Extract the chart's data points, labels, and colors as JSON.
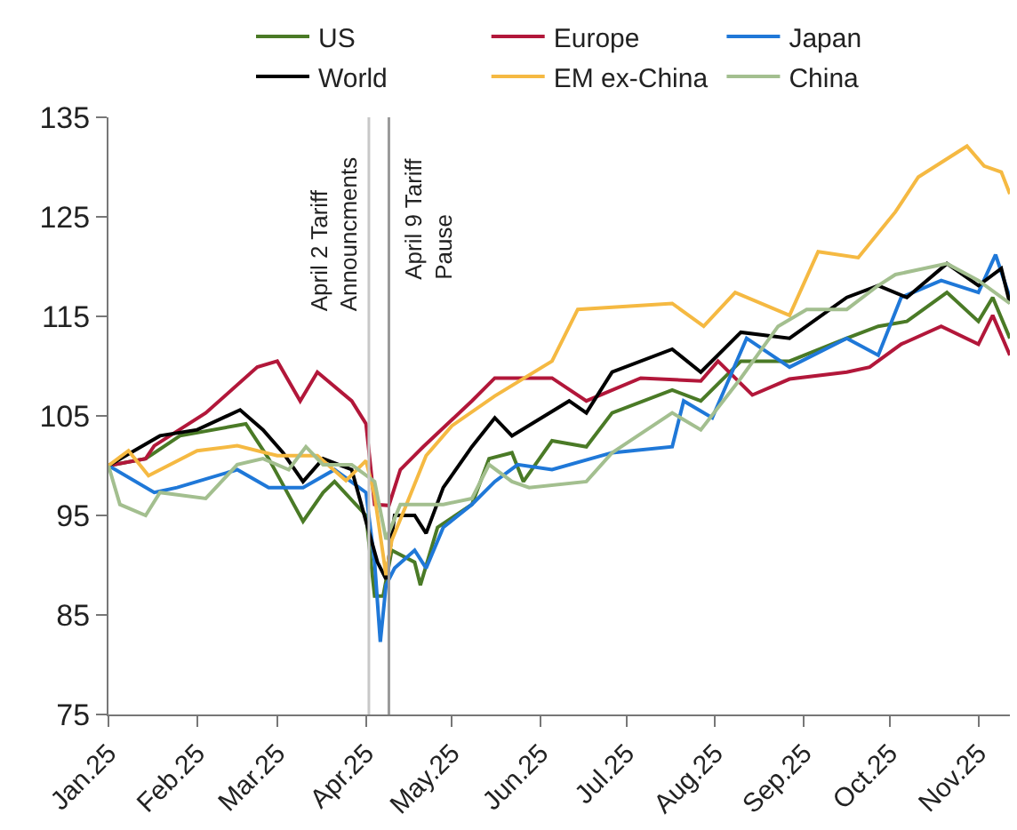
{
  "chart_data": {
    "type": "line",
    "legend": "top",
    "grid": false,
    "line_style": "solid",
    "marker": "none",
    "xlim": [
      "2025-01-01",
      "2025-11-12"
    ],
    "xticks": [
      {
        "value": "2025-01-01",
        "label": "Jan.25"
      },
      {
        "value": "2025-02-01",
        "label": "Feb.25"
      },
      {
        "value": "2025-03-01",
        "label": "Mar.25"
      },
      {
        "value": "2025-04-01",
        "label": "Apr.25"
      },
      {
        "value": "2025-05-01",
        "label": "May.25"
      },
      {
        "value": "2025-06-01",
        "label": "Jun.25"
      },
      {
        "value": "2025-07-01",
        "label": "Jul.25"
      },
      {
        "value": "2025-08-01",
        "label": "Aug.25"
      },
      {
        "value": "2025-09-01",
        "label": "Sep.25"
      },
      {
        "value": "2025-10-01",
        "label": "Oct.25"
      },
      {
        "value": "2025-11-01",
        "label": "Nov.25"
      }
    ],
    "ylim": [
      75,
      135
    ],
    "yticks": [
      75,
      85,
      95,
      105,
      115,
      125,
      135
    ],
    "ref_lines": [
      {
        "axis": "x",
        "value": "2025-04-02",
        "label": "April 2 Tariff\nAnnouncments",
        "color": "#c8c8c8"
      },
      {
        "axis": "x",
        "value": "2025-04-09",
        "label": "April 9 Tariff\nPause",
        "color": "#9a9a9a"
      }
    ],
    "series": [
      {
        "name": "US",
        "color": "#4a7a26",
        "x": [
          "2025-01-01",
          "2025-01-14",
          "2025-01-26",
          "2025-02-18",
          "2025-02-26",
          "2025-03-10",
          "2025-03-17",
          "2025-03-21",
          "2025-04-01",
          "2025-04-04",
          "2025-04-07",
          "2025-04-10",
          "2025-04-18",
          "2025-04-20",
          "2025-04-26",
          "2025-05-08",
          "2025-05-14",
          "2025-05-22",
          "2025-05-26",
          "2025-06-05",
          "2025-06-17",
          "2025-06-26",
          "2025-07-17",
          "2025-07-27",
          "2025-08-10",
          "2025-08-27",
          "2025-09-16",
          "2025-09-27",
          "2025-10-07",
          "2025-10-21",
          "2025-11-01",
          "2025-11-06",
          "2025-11-12"
        ],
        "values": [
          100,
          100.7,
          103,
          104.2,
          100.7,
          94.4,
          97.3,
          98.4,
          95,
          86.9,
          86.9,
          91.5,
          90.3,
          88,
          93.8,
          96.1,
          100.7,
          101.3,
          98.4,
          102.5,
          101.9,
          105.3,
          107.6,
          106.5,
          110.5,
          110.5,
          112.8,
          114,
          114.5,
          117.4,
          114.5,
          116.9,
          112.8
        ]
      },
      {
        "name": "Europe",
        "color": "#b2173a",
        "x": [
          "2025-01-01",
          "2025-01-14",
          "2025-01-17",
          "2025-02-04",
          "2025-02-22",
          "2025-03-01",
          "2025-03-09",
          "2025-03-15",
          "2025-03-27",
          "2025-04-01",
          "2025-04-04",
          "2025-04-09",
          "2025-04-13",
          "2025-04-21",
          "2025-05-08",
          "2025-05-16",
          "2025-06-05",
          "2025-06-17",
          "2025-07-06",
          "2025-07-27",
          "2025-08-02",
          "2025-08-14",
          "2025-08-27",
          "2025-09-16",
          "2025-09-24",
          "2025-10-05",
          "2025-10-19",
          "2025-11-01",
          "2025-11-06",
          "2025-11-12"
        ],
        "values": [
          100,
          100.7,
          102,
          105.3,
          109.9,
          110.5,
          106.5,
          109.4,
          106.5,
          104.2,
          96.1,
          96,
          99.6,
          101.9,
          106.5,
          108.8,
          108.8,
          106.5,
          108.8,
          108.5,
          110.5,
          107.1,
          108.7,
          109.4,
          109.9,
          112.2,
          114,
          112.2,
          115.1,
          111.1
        ]
      },
      {
        "name": "Japan",
        "color": "#1f78d8",
        "x": [
          "2025-01-01",
          "2025-01-17",
          "2025-01-25",
          "2025-02-15",
          "2025-02-26",
          "2025-03-10",
          "2025-03-21",
          "2025-04-01",
          "2025-04-04",
          "2025-04-06",
          "2025-04-08",
          "2025-04-11",
          "2025-04-18",
          "2025-04-22",
          "2025-04-28",
          "2025-05-08",
          "2025-05-16",
          "2025-05-24",
          "2025-06-05",
          "2025-06-26",
          "2025-07-17",
          "2025-07-21",
          "2025-07-31",
          "2025-08-12",
          "2025-08-27",
          "2025-09-16",
          "2025-09-27",
          "2025-10-05",
          "2025-10-19",
          "2025-11-01",
          "2025-11-07",
          "2025-11-10",
          "2025-11-12"
        ],
        "values": [
          100,
          97.3,
          97.8,
          99.6,
          97.8,
          97.8,
          99.6,
          97.3,
          90.3,
          82.3,
          88,
          89.7,
          91.5,
          89.7,
          93.8,
          96.1,
          98.4,
          100.1,
          99.6,
          101.3,
          101.9,
          106.5,
          104.8,
          112.8,
          109.9,
          112.8,
          111.1,
          116.9,
          118.6,
          117.4,
          121.2,
          118.6,
          116.9
        ]
      },
      {
        "name": "World",
        "color": "#000000",
        "x": [
          "2025-01-01",
          "2025-01-19",
          "2025-02-01",
          "2025-02-16",
          "2025-02-24",
          "2025-03-03",
          "2025-03-10",
          "2025-03-17",
          "2025-03-27",
          "2025-04-01",
          "2025-04-05",
          "2025-04-08",
          "2025-04-11",
          "2025-04-18",
          "2025-04-22",
          "2025-04-28",
          "2025-05-08",
          "2025-05-16",
          "2025-05-22",
          "2025-06-11",
          "2025-06-17",
          "2025-06-26",
          "2025-07-17",
          "2025-07-27",
          "2025-08-10",
          "2025-08-27",
          "2025-09-16",
          "2025-09-27",
          "2025-10-07",
          "2025-10-21",
          "2025-11-01",
          "2025-11-09",
          "2025-11-12"
        ],
        "values": [
          100,
          103,
          103.6,
          105.6,
          103.6,
          101.3,
          98.4,
          100.7,
          99.6,
          94.4,
          90.3,
          88.6,
          95,
          95,
          93.2,
          97.8,
          101.9,
          104.8,
          103,
          106.5,
          105.3,
          109.4,
          111.7,
          109.4,
          113.4,
          112.8,
          116.9,
          118.1,
          116.9,
          120.3,
          118.1,
          119.8,
          116.3
        ]
      },
      {
        "name": "EM ex-China",
        "color": "#f5b942",
        "x": [
          "2025-01-01",
          "2025-01-08",
          "2025-01-15",
          "2025-02-01",
          "2025-02-15",
          "2025-03-01",
          "2025-03-15",
          "2025-03-25",
          "2025-04-01",
          "2025-04-04",
          "2025-04-08",
          "2025-04-10",
          "2025-04-15",
          "2025-04-22",
          "2025-05-01",
          "2025-05-16",
          "2025-06-05",
          "2025-06-14",
          "2025-07-01",
          "2025-07-17",
          "2025-07-28",
          "2025-08-08",
          "2025-08-27",
          "2025-09-06",
          "2025-09-20",
          "2025-10-03",
          "2025-10-11",
          "2025-10-28",
          "2025-11-03",
          "2025-11-09",
          "2025-11-12"
        ],
        "values": [
          100,
          101.5,
          99,
          101.5,
          102,
          101,
          101,
          98.5,
          100.5,
          97,
          89,
          92.5,
          96,
          101,
          104,
          107,
          110.5,
          115.7,
          116,
          116.3,
          114,
          117.4,
          115.1,
          121.5,
          120.9,
          125.5,
          129,
          132.1,
          130.1,
          129.5,
          127.3
        ]
      },
      {
        "name": "China",
        "color": "#a3bf8f",
        "x": [
          "2025-01-01",
          "2025-01-05",
          "2025-01-14",
          "2025-01-19",
          "2025-02-04",
          "2025-02-15",
          "2025-02-24",
          "2025-03-05",
          "2025-03-11",
          "2025-03-17",
          "2025-03-27",
          "2025-04-04",
          "2025-04-08",
          "2025-04-13",
          "2025-04-28",
          "2025-05-08",
          "2025-05-14",
          "2025-05-22",
          "2025-05-28",
          "2025-06-17",
          "2025-06-26",
          "2025-07-17",
          "2025-07-27",
          "2025-08-10",
          "2025-08-23",
          "2025-09-02",
          "2025-09-16",
          "2025-09-27",
          "2025-10-03",
          "2025-10-21",
          "2025-11-01",
          "2025-11-12"
        ],
        "values": [
          100,
          96.1,
          95,
          97.3,
          96.7,
          100.1,
          100.7,
          99.6,
          101.9,
          100.1,
          100.1,
          98.4,
          92.6,
          96.1,
          96.1,
          96.7,
          100.1,
          98.4,
          97.8,
          98.4,
          101.3,
          105.3,
          103.6,
          108.8,
          114,
          115.7,
          115.7,
          118.1,
          119.2,
          120.3,
          118.6,
          116.3
        ]
      }
    ]
  }
}
